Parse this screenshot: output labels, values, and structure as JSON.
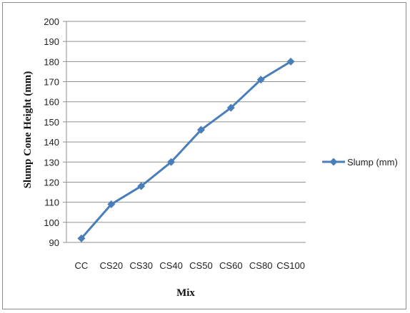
{
  "chart_data": {
    "type": "line",
    "categories": [
      "CC",
      "CS20",
      "CS30",
      "CS40",
      "CS50",
      "CS60",
      "CS80",
      "CS100"
    ],
    "series": [
      {
        "name": "Slump (mm)",
        "values": [
          92,
          109,
          118,
          130,
          146,
          157,
          171,
          180
        ],
        "color": "#4a7ebb"
      }
    ],
    "xlabel": "Mix",
    "ylabel": "Slump Cone Height (mm)",
    "ylim": [
      90,
      200
    ],
    "yticks": [
      90,
      100,
      110,
      120,
      130,
      140,
      150,
      160,
      170,
      180,
      190,
      200
    ],
    "grid": true,
    "legend_position": "right",
    "marker": "diamond"
  }
}
